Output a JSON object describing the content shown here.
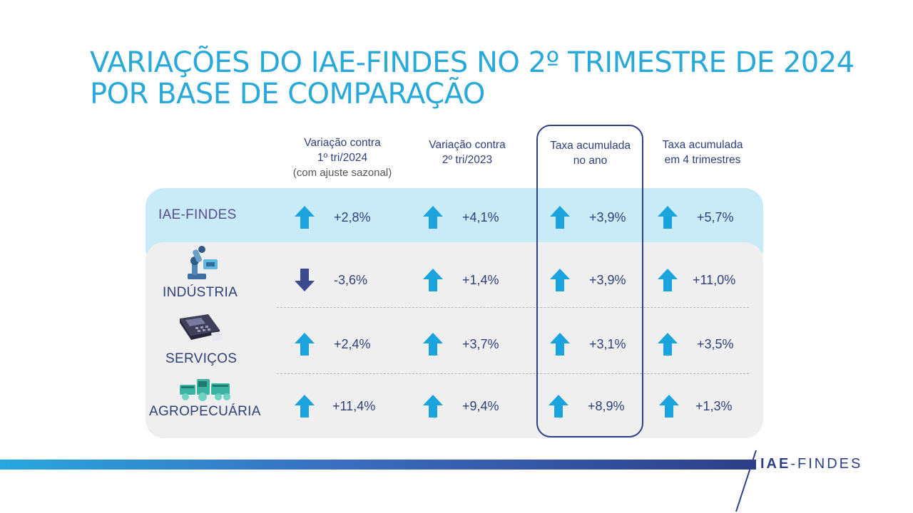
{
  "title": {
    "line1": "VARIAÇÕES DO IAE-FINDES NO 2º TRIMESTRE DE 2024",
    "line2": "POR BASE DE COMPARAÇÃO"
  },
  "columns": [
    {
      "line1": "Variação contra",
      "line2": "1º tri/2024",
      "note": "(com ajuste sazonal)"
    },
    {
      "line1": "Variação contra",
      "line2": "2º tri/2023",
      "note": ""
    },
    {
      "line1": "Taxa acumulada",
      "line2": "no ano",
      "note": ""
    },
    {
      "line1": "Taxa acumulada",
      "line2": "em 4 trimestres",
      "note": ""
    }
  ],
  "rows": [
    {
      "label": "IAE-FINDES",
      "icon": "none",
      "values": [
        "+2,8%",
        "+4,1%",
        "+3,9%",
        "+5,7%"
      ],
      "directions": [
        "up",
        "up",
        "up",
        "up"
      ]
    },
    {
      "label": "INDÚSTRIA",
      "icon": "robot-arm-icon",
      "values": [
        "-3,6%",
        "+1,4%",
        "+3,9%",
        "+11,0%"
      ],
      "directions": [
        "down",
        "up",
        "up",
        "up"
      ]
    },
    {
      "label": "SERVIÇOS",
      "icon": "card-machine-icon",
      "values": [
        "+2,4%",
        "+3,7%",
        "+3,1%",
        "+3,5%"
      ],
      "directions": [
        "up",
        "up",
        "up",
        "up"
      ]
    },
    {
      "label": "AGROPECUÁRIA",
      "icon": "farm-machinery-icon",
      "values": [
        "+11,4%",
        "+9,4%",
        "+8,9%",
        "+1,3%"
      ],
      "directions": [
        "up",
        "up",
        "up",
        "up"
      ]
    }
  ],
  "colors": {
    "up": "#1aa3dd",
    "down": "#3b4a8f",
    "title": "#29a9d9",
    "text": "#2f3f7a"
  },
  "logo": {
    "part1": "IAE",
    "part2": "-FINDES"
  }
}
